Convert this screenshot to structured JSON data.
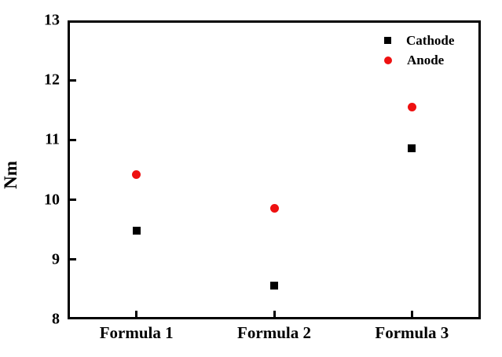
{
  "figure": {
    "background": "#ffffff",
    "frame_color": "#000000"
  },
  "chart_data": {
    "type": "scatter",
    "categories": [
      "Formula 1",
      "Formula 2",
      "Formula 3"
    ],
    "series": [
      {
        "name": "Cathode",
        "marker": "square",
        "color": "#000000",
        "values": [
          9.48,
          8.57,
          10.86
        ]
      },
      {
        "name": "Anode",
        "marker": "circle",
        "color": "#ee1111",
        "values": [
          10.42,
          9.86,
          11.55
        ]
      }
    ],
    "title": "",
    "xlabel": "",
    "ylabel": "Nm",
    "ylim": [
      8,
      13
    ],
    "yticks": [
      8,
      9,
      10,
      11,
      12,
      13
    ],
    "grid": false,
    "legend_position": "top-right"
  }
}
